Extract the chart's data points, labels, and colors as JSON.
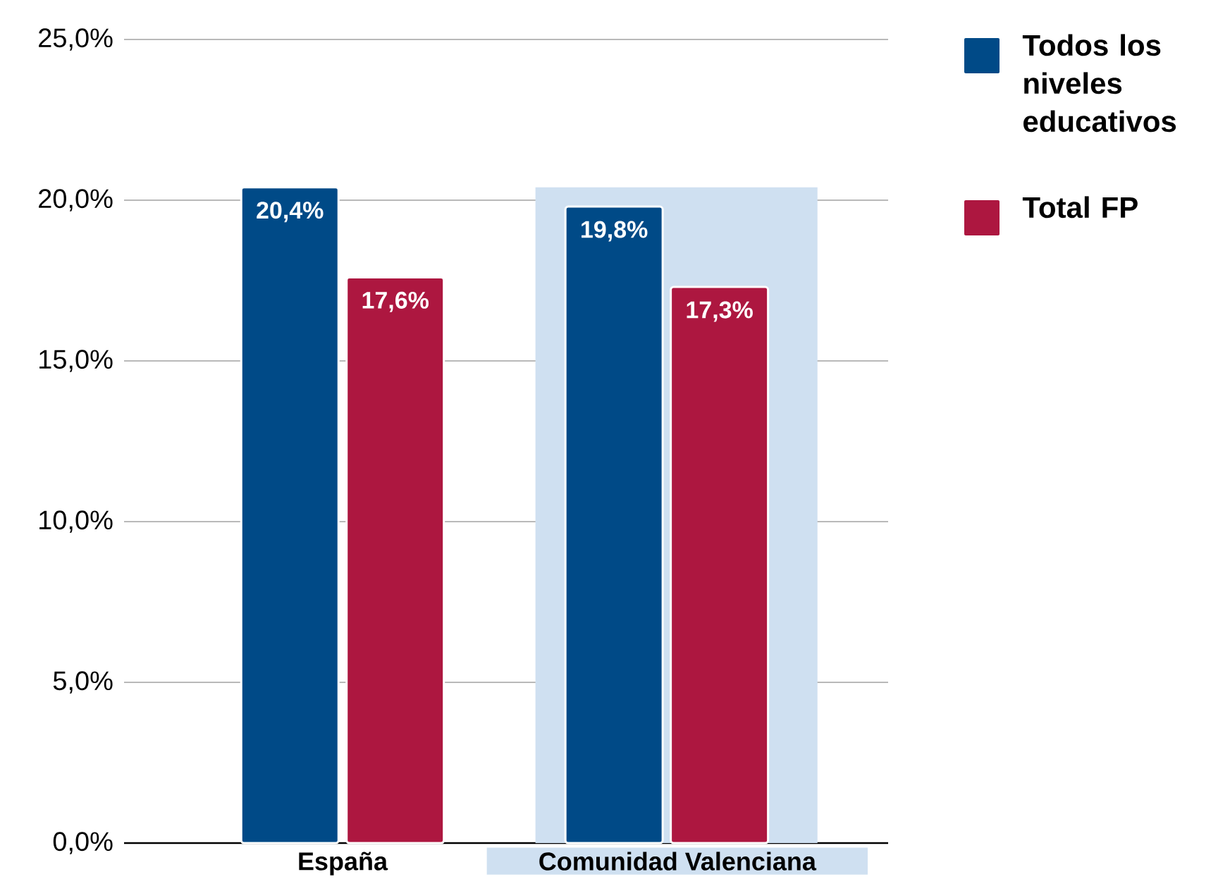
{
  "chart_data": {
    "type": "bar",
    "categories": [
      "España",
      "Comunidad Valenciana"
    ],
    "series": [
      {
        "name": "Todos los niveles educativos",
        "color": "#004a87",
        "values": [
          20.4,
          19.8
        ],
        "value_labels": [
          "20,4%",
          "19,8%"
        ]
      },
      {
        "name": "Total FP",
        "color": "#ad1740",
        "values": [
          17.6,
          17.3
        ],
        "value_labels": [
          "17,6%",
          "17,3%"
        ]
      }
    ],
    "ylim": [
      0,
      25
    ],
    "yticks": [
      {
        "value": 0,
        "label": "0,0%"
      },
      {
        "value": 5,
        "label": "5,0%"
      },
      {
        "value": 10,
        "label": "10,0%"
      },
      {
        "value": 15,
        "label": "15,0%"
      },
      {
        "value": 20,
        "label": "20,0%"
      },
      {
        "value": 25,
        "label": "25,0%"
      }
    ],
    "bands": [
      {
        "axis": "x",
        "from": "Comunidad Valenciana",
        "to": "Comunidad Valenciana",
        "color": "#cfe0f1"
      }
    ],
    "grid": "y",
    "legend": "top right"
  }
}
